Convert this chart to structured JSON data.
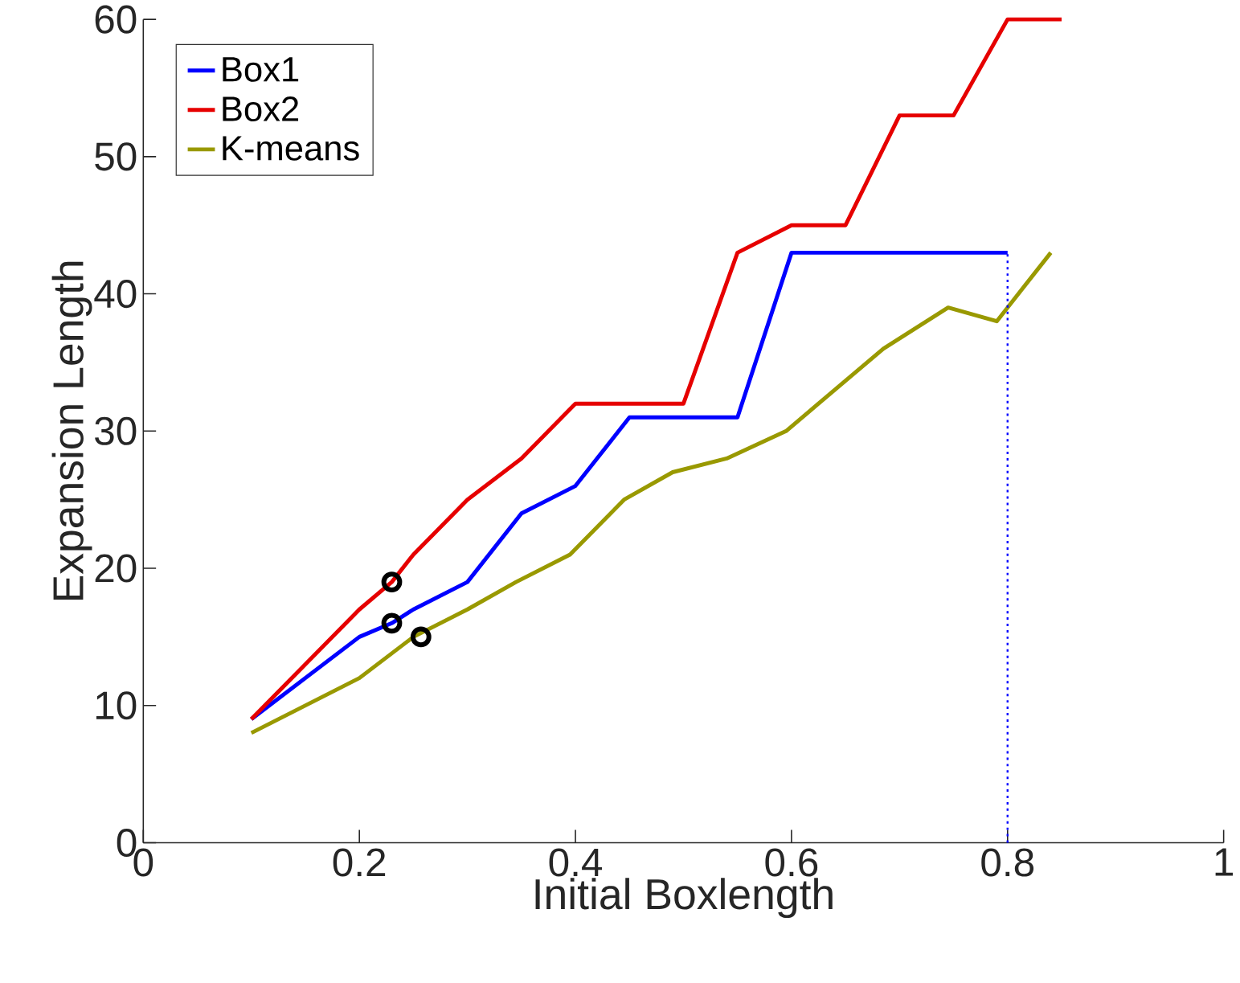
{
  "chart_data": {
    "type": "line",
    "xlabel": "Initial Boxlength",
    "ylabel": "Expansion Length",
    "xlim": [
      0,
      1
    ],
    "ylim": [
      0,
      60
    ],
    "xticks": [
      0,
      0.2,
      0.4,
      0.6,
      0.8,
      1
    ],
    "yticks": [
      0,
      10,
      20,
      30,
      40,
      50,
      60
    ],
    "grid": false,
    "legend": "top left",
    "series": [
      {
        "name": "Box1",
        "color": "#0000ff",
        "x": [
          0.1,
          0.2,
          0.23,
          0.25,
          0.3,
          0.35,
          0.4,
          0.45,
          0.55,
          0.6,
          0.8
        ],
        "values": [
          9,
          15,
          16,
          17,
          19,
          24,
          26,
          31,
          31,
          43,
          43
        ]
      },
      {
        "name": "Box2",
        "color": "#e60000",
        "x": [
          0.1,
          0.2,
          0.23,
          0.25,
          0.3,
          0.35,
          0.4,
          0.5,
          0.55,
          0.6,
          0.65,
          0.7,
          0.75,
          0.8,
          0.85
        ],
        "values": [
          9,
          17,
          19,
          21,
          25,
          28,
          32,
          32,
          43,
          45,
          45,
          53,
          53,
          60,
          60
        ]
      },
      {
        "name": "K-means",
        "color": "#999900",
        "x": [
          0.1,
          0.2,
          0.25,
          0.3,
          0.345,
          0.395,
          0.445,
          0.49,
          0.54,
          0.595,
          0.685,
          0.745,
          0.79,
          0.84
        ],
        "values": [
          8,
          12,
          15,
          17,
          19,
          21,
          25,
          27,
          28,
          30,
          36,
          39,
          38,
          43
        ]
      },
      {
        "type": "line",
        "line_style": "dotted",
        "color": "#0000ff",
        "x": [
          0.8,
          0.8
        ],
        "values": [
          0,
          43
        ]
      },
      {
        "type": "scatter",
        "marker": "circle",
        "color": "#000000",
        "x": [
          0.23,
          0.23,
          0.257
        ],
        "values": [
          19,
          16,
          15
        ]
      }
    ]
  }
}
